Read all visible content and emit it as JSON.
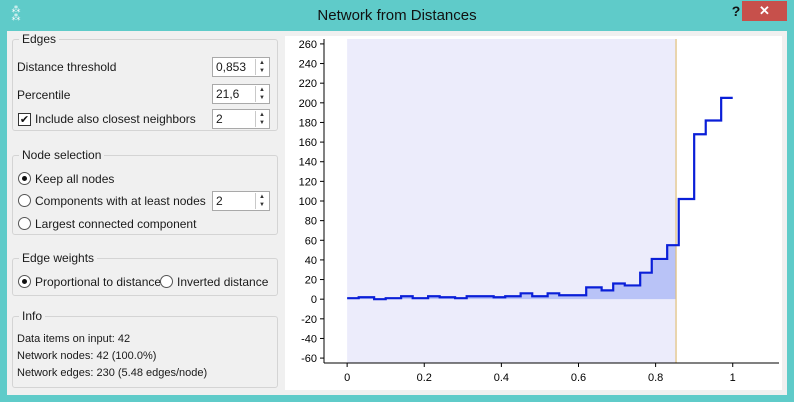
{
  "window": {
    "title": "Network from Distances",
    "help_label": "?",
    "close_label": "✕",
    "app_icon": "network-icon"
  },
  "edges": {
    "group_title": "Edges",
    "distance_threshold_label": "Distance threshold",
    "distance_threshold_value": "0,853",
    "percentile_label": "Percentile",
    "percentile_value": "21,6",
    "closest_neighbors_label": "Include also closest neighbors",
    "closest_neighbors_checked": true,
    "closest_neighbors_value": "2"
  },
  "node_selection": {
    "group_title": "Node selection",
    "options": [
      "Keep all nodes",
      "Components with at least nodes",
      "Largest connected component"
    ],
    "selected_index": 0,
    "min_nodes_value": "2"
  },
  "edge_weights": {
    "group_title": "Edge weights",
    "options": [
      "Proportional to distance",
      "Inverted distance"
    ],
    "selected_index": 0
  },
  "info": {
    "group_title": "Info",
    "input_items": "Data items on input: 42",
    "network_nodes": "Network nodes: 42 (100.0%)",
    "network_edges": "Network edges: 230 (5.48 edges/node)"
  },
  "chart_data": {
    "type": "line",
    "step": true,
    "x": [
      0,
      0.03,
      0.07,
      0.1,
      0.14,
      0.17,
      0.21,
      0.24,
      0.28,
      0.31,
      0.34,
      0.38,
      0.41,
      0.45,
      0.48,
      0.52,
      0.55,
      0.59,
      0.62,
      0.66,
      0.69,
      0.72,
      0.76,
      0.79,
      0.83,
      0.853,
      0.86,
      0.9,
      0.93,
      0.97,
      1
    ],
    "values": [
      1,
      2,
      0,
      1,
      3,
      1,
      3,
      2,
      1,
      3,
      3,
      2,
      3,
      6,
      3,
      6,
      4,
      4,
      12,
      9,
      16,
      14,
      27,
      41,
      55,
      55,
      102,
      168,
      182,
      205,
      205
    ],
    "xlim": [
      -0.06,
      1.12
    ],
    "ylim": [
      -65,
      265
    ],
    "x_ticks": [
      0,
      0.2,
      0.4,
      0.6,
      0.8,
      1
    ],
    "x_tick_labels": [
      "0",
      "0.2",
      "0.4",
      "0.6",
      "0.8",
      "1"
    ],
    "y_ticks": [
      260,
      240,
      220,
      200,
      180,
      160,
      140,
      120,
      100,
      80,
      60,
      40,
      20,
      0,
      -20,
      -40,
      -60
    ],
    "y_tick_labels": [
      "260",
      "240",
      "220",
      "200",
      "180",
      "160",
      "140",
      "120",
      "100",
      "80",
      "60",
      "40",
      "20",
      "0",
      "-20",
      "-40",
      "-60"
    ],
    "threshold": 0.853,
    "selected_region": [
      0,
      0.853
    ],
    "colors": {
      "line": "#0a1fd8",
      "fill": "#b9c3f7",
      "region": "#ececfb",
      "threshold": "#e0bf7a"
    },
    "title": "",
    "xlabel": "",
    "ylabel": ""
  }
}
